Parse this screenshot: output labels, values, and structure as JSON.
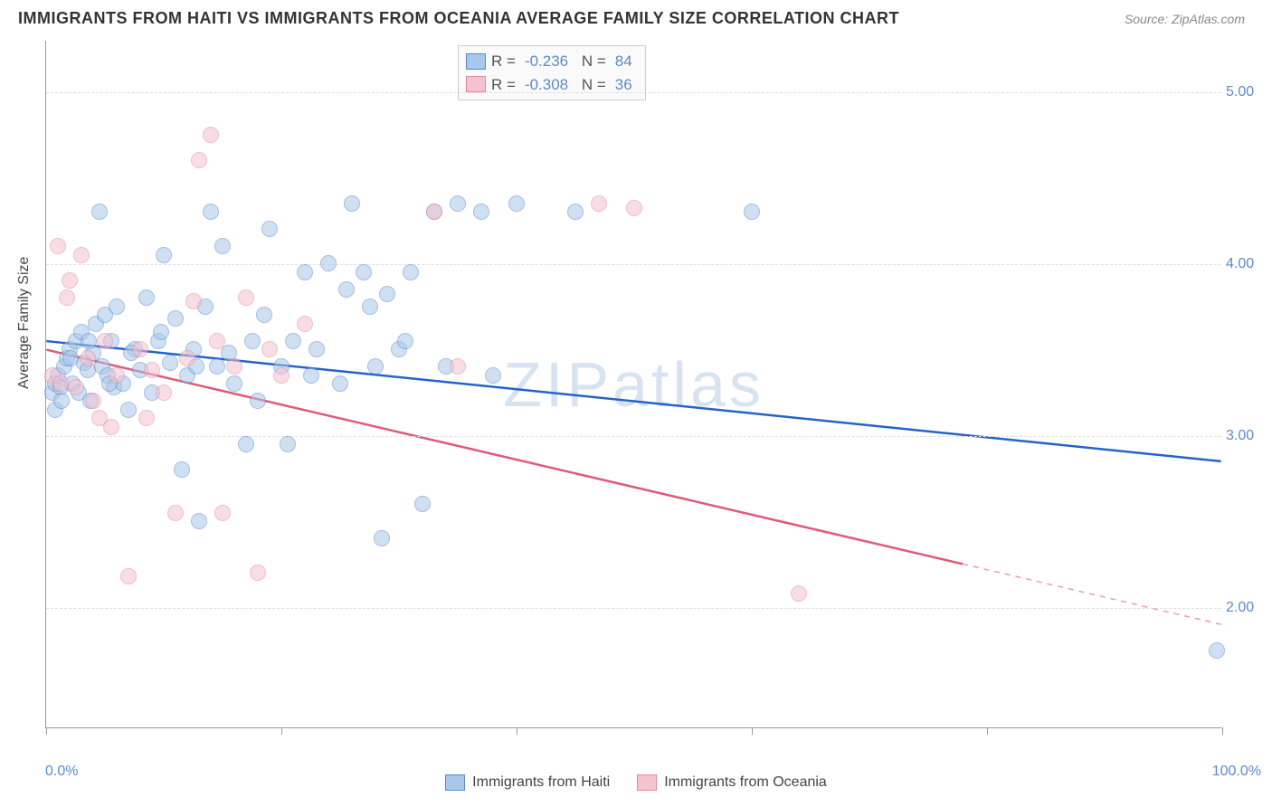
{
  "title": "IMMIGRANTS FROM HAITI VS IMMIGRANTS FROM OCEANIA AVERAGE FAMILY SIZE CORRELATION CHART",
  "source": "Source: ZipAtlas.com",
  "ylabel": "Average Family Size",
  "watermark": "ZIPatlas",
  "chart": {
    "type": "scatter",
    "xlim": [
      0,
      100
    ],
    "ylim": [
      1.3,
      5.3
    ],
    "x_ticks": [
      0,
      20,
      40,
      60,
      80,
      100
    ],
    "y_ticks": [
      2.0,
      3.0,
      4.0,
      5.0
    ],
    "x_tick_labels": {
      "start": "0.0%",
      "end": "100.0%"
    },
    "y_tick_format": "0.00",
    "grid_color": "#dddddd",
    "axis_color": "#999999",
    "background_color": "#ffffff",
    "tick_label_color": "#5b8ac7",
    "point_radius": 9,
    "point_opacity": 0.55,
    "series": [
      {
        "name": "Immigrants from Haiti",
        "fill_color": "#a9c7ea",
        "stroke_color": "#5b8ac7",
        "line_color": "#2563c9",
        "R": "-0.236",
        "N": "84",
        "regression": {
          "x1": 0,
          "y1": 3.55,
          "x2": 100,
          "y2": 2.85,
          "solid_until_x": 100
        },
        "points": [
          [
            0.5,
            3.25
          ],
          [
            0.8,
            3.3
          ],
          [
            1.0,
            3.35
          ],
          [
            1.2,
            3.28
          ],
          [
            1.5,
            3.4
          ],
          [
            1.8,
            3.45
          ],
          [
            2.0,
            3.5
          ],
          [
            2.2,
            3.3
          ],
          [
            2.5,
            3.55
          ],
          [
            2.8,
            3.25
          ],
          [
            3.0,
            3.6
          ],
          [
            3.2,
            3.42
          ],
          [
            3.5,
            3.38
          ],
          [
            3.8,
            3.2
          ],
          [
            4.0,
            3.48
          ],
          [
            4.2,
            3.65
          ],
          [
            4.5,
            4.3
          ],
          [
            4.8,
            3.4
          ],
          [
            5.0,
            3.7
          ],
          [
            5.2,
            3.35
          ],
          [
            5.5,
            3.55
          ],
          [
            5.8,
            3.28
          ],
          [
            6.0,
            3.75
          ],
          [
            6.5,
            3.3
          ],
          [
            7.0,
            3.15
          ],
          [
            7.5,
            3.5
          ],
          [
            8.0,
            3.38
          ],
          [
            8.5,
            3.8
          ],
          [
            9.0,
            3.25
          ],
          [
            9.5,
            3.55
          ],
          [
            10.0,
            4.05
          ],
          [
            10.5,
            3.42
          ],
          [
            11.0,
            3.68
          ],
          [
            11.5,
            2.8
          ],
          [
            12.0,
            3.35
          ],
          [
            12.5,
            3.5
          ],
          [
            13.0,
            2.5
          ],
          [
            13.5,
            3.75
          ],
          [
            14.0,
            4.3
          ],
          [
            14.5,
            3.4
          ],
          [
            15.0,
            4.1
          ],
          [
            15.5,
            3.48
          ],
          [
            16.0,
            3.3
          ],
          [
            17.0,
            2.95
          ],
          [
            17.5,
            3.55
          ],
          [
            18.0,
            3.2
          ],
          [
            18.5,
            3.7
          ],
          [
            19.0,
            4.2
          ],
          [
            20.0,
            3.4
          ],
          [
            20.5,
            2.95
          ],
          [
            21.0,
            3.55
          ],
          [
            22.0,
            3.95
          ],
          [
            22.5,
            3.35
          ],
          [
            23.0,
            3.5
          ],
          [
            24.0,
            4.0
          ],
          [
            25.0,
            3.3
          ],
          [
            25.5,
            3.85
          ],
          [
            26.0,
            4.35
          ],
          [
            27.0,
            3.95
          ],
          [
            27.5,
            3.75
          ],
          [
            28.0,
            3.4
          ],
          [
            28.5,
            2.4
          ],
          [
            29.0,
            3.82
          ],
          [
            30.0,
            3.5
          ],
          [
            30.5,
            3.55
          ],
          [
            31.0,
            3.95
          ],
          [
            32.0,
            2.6
          ],
          [
            33.0,
            4.3
          ],
          [
            34.0,
            3.4
          ],
          [
            35.0,
            4.35
          ],
          [
            37.0,
            4.3
          ],
          [
            38.0,
            3.35
          ],
          [
            40.0,
            4.35
          ],
          [
            45.0,
            4.3
          ],
          [
            60.0,
            4.3
          ],
          [
            0.8,
            3.15
          ],
          [
            1.3,
            3.2
          ],
          [
            2.1,
            3.45
          ],
          [
            3.6,
            3.55
          ],
          [
            5.4,
            3.3
          ],
          [
            7.2,
            3.48
          ],
          [
            9.8,
            3.6
          ],
          [
            99.5,
            1.75
          ],
          [
            12.8,
            3.4
          ]
        ]
      },
      {
        "name": "Immigrants from Oceania",
        "fill_color": "#f5c2cf",
        "stroke_color": "#e08aa0",
        "line_color": "#e05a7a",
        "R": "-0.308",
        "N": "36",
        "regression": {
          "x1": 0,
          "y1": 3.5,
          "x2": 100,
          "y2": 1.9,
          "solid_until_x": 78
        },
        "points": [
          [
            0.5,
            3.35
          ],
          [
            1.0,
            4.1
          ],
          [
            1.2,
            3.3
          ],
          [
            1.8,
            3.8
          ],
          [
            2.0,
            3.9
          ],
          [
            2.5,
            3.28
          ],
          [
            3.0,
            4.05
          ],
          [
            3.5,
            3.45
          ],
          [
            4.0,
            3.2
          ],
          [
            4.5,
            3.1
          ],
          [
            5.0,
            3.55
          ],
          [
            5.5,
            3.05
          ],
          [
            6.0,
            3.35
          ],
          [
            7.0,
            2.18
          ],
          [
            8.0,
            3.5
          ],
          [
            8.5,
            3.1
          ],
          [
            9.0,
            3.38
          ],
          [
            10.0,
            3.25
          ],
          [
            11.0,
            2.55
          ],
          [
            12.0,
            3.45
          ],
          [
            13.0,
            4.6
          ],
          [
            14.0,
            4.75
          ],
          [
            14.5,
            3.55
          ],
          [
            15.0,
            2.55
          ],
          [
            16.0,
            3.4
          ],
          [
            17.0,
            3.8
          ],
          [
            18.0,
            2.2
          ],
          [
            19.0,
            3.5
          ],
          [
            20.0,
            3.35
          ],
          [
            22.0,
            3.65
          ],
          [
            33.0,
            4.3
          ],
          [
            35.0,
            3.4
          ],
          [
            47.0,
            4.35
          ],
          [
            50.0,
            4.32
          ],
          [
            64.0,
            2.08
          ],
          [
            12.5,
            3.78
          ]
        ]
      }
    ]
  },
  "legend": {
    "r_label": "R",
    "n_label": "N",
    "equals": "="
  }
}
